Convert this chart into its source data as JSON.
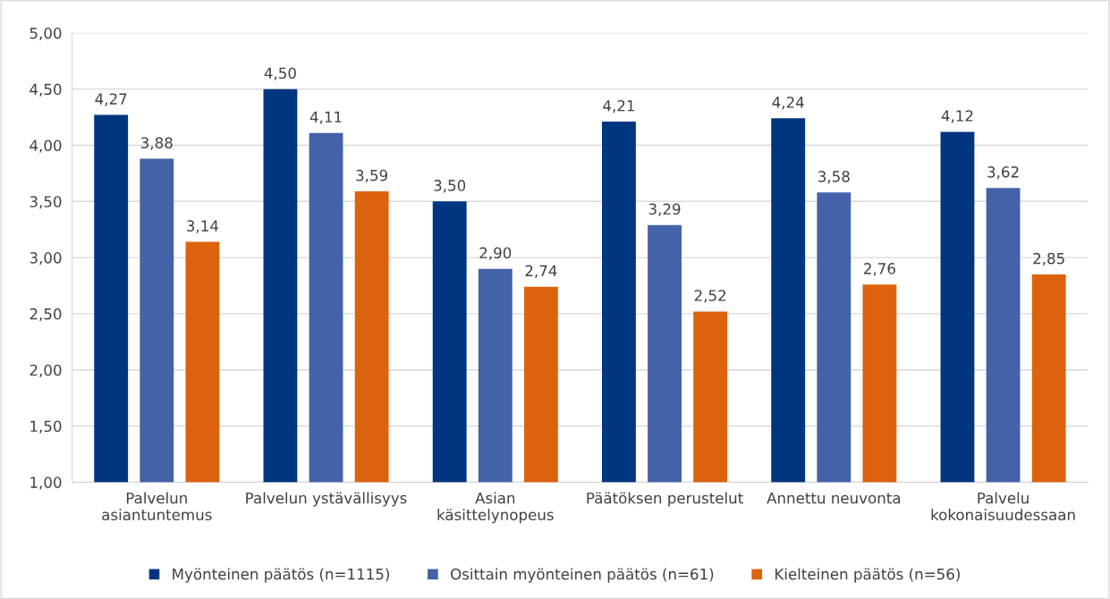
{
  "chart_data": {
    "type": "bar",
    "categories": [
      "Palvelun\nasiantuntemus",
      "Palvelun ystävällisyys",
      "Asian\nkäsittelynopeus",
      "Päätöksen perustelut",
      "Annettu neuvonta",
      "Palvelu\nkokonaisuudessaan"
    ],
    "series": [
      {
        "name": "Myönteinen päätös (n=1115)",
        "color": "#003580",
        "values": [
          4.27,
          4.5,
          3.5,
          4.21,
          4.24,
          4.12
        ],
        "value_labels": [
          "4,27",
          "4,50",
          "3,50",
          "4,21",
          "4,24",
          "4,12"
        ]
      },
      {
        "name": "Osittain myönteinen päätös (n=61)",
        "color": "#4462a8",
        "values": [
          3.88,
          4.11,
          2.9,
          3.29,
          3.58,
          3.62
        ],
        "value_labels": [
          "3,88",
          "4,11",
          "2,90",
          "3,29",
          "3,58",
          "3,62"
        ]
      },
      {
        "name": "Kielteinen päätös (n=56)",
        "color": "#dd620e",
        "values": [
          3.14,
          3.59,
          2.74,
          2.52,
          2.76,
          2.85
        ],
        "value_labels": [
          "3,14",
          "3,59",
          "2,74",
          "2,52",
          "2,76",
          "2,85"
        ]
      }
    ],
    "ylim": [
      1,
      5
    ],
    "yticks": [
      {
        "value": 1,
        "label": "1,00"
      },
      {
        "value": 1.5,
        "label": "1,50"
      },
      {
        "value": 2,
        "label": "2,00"
      },
      {
        "value": 2.5,
        "label": "2,50"
      },
      {
        "value": 3,
        "label": "3,00"
      },
      {
        "value": 3.5,
        "label": "3,50"
      },
      {
        "value": 4,
        "label": "4,00"
      },
      {
        "value": 4.5,
        "label": "4,50"
      },
      {
        "value": 5,
        "label": "5,00"
      }
    ],
    "grid": "y",
    "legend": "bottom"
  }
}
